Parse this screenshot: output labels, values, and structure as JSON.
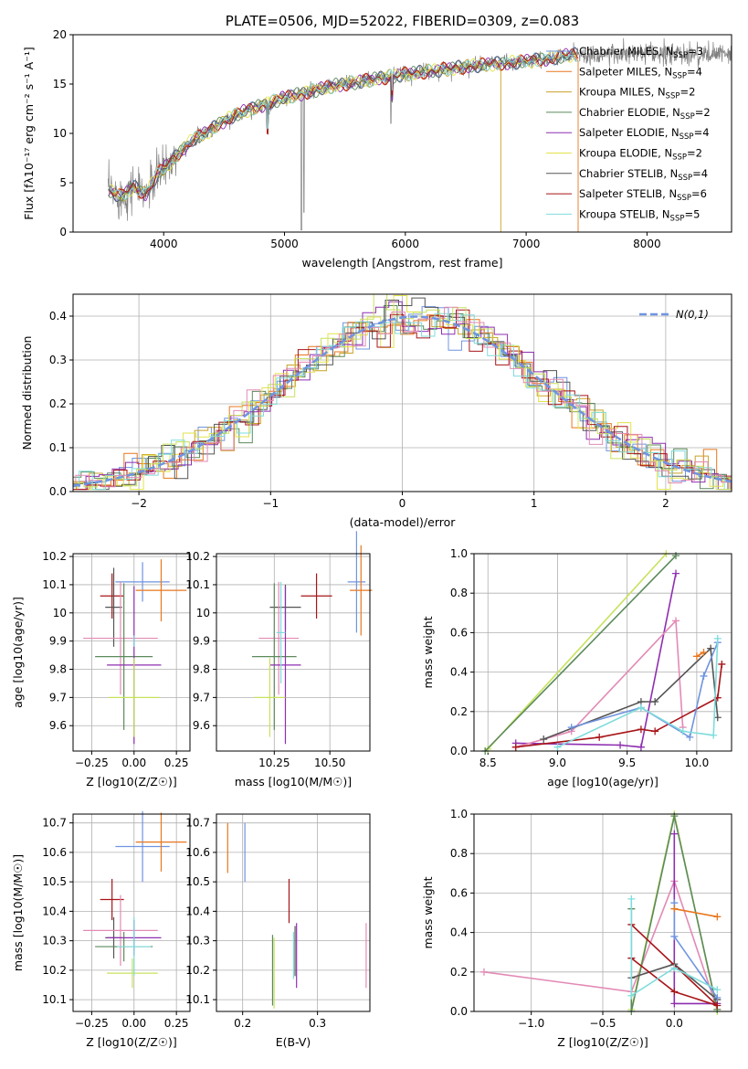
{
  "palette": [
    "#6f94e0",
    "#e8771e",
    "#c9a227",
    "#5b8a5b",
    "#8e2fb0",
    "#e3e34b",
    "#555555",
    "#a81418",
    "#7fdcdc",
    "#e38ab5",
    "#c7e25c",
    "#7b4ea3"
  ],
  "chart_data": [
    {
      "id": "spectrum",
      "type": "line",
      "title": "PLATE=0506, MJD=52022, FIBERID=0309, z=0.083",
      "xlabel": "wavelength [Angstrom, rest frame]",
      "ylabel": "Flux [fλ10⁻¹⁷ erg cm⁻² s⁻¹ A⁻¹]",
      "xlim": [
        3250,
        8700
      ],
      "ylim": [
        0,
        20
      ],
      "xticks": [
        4000,
        5000,
        6000,
        7000,
        8000
      ],
      "yticks": [
        0,
        5,
        10,
        15,
        20
      ],
      "grid": false,
      "legend_position": "upper right",
      "continuum": {
        "x": [
          3550,
          3650,
          3750,
          3850,
          3950,
          4050,
          4150,
          4250,
          4350,
          4450,
          4600,
          4800,
          5000,
          5200,
          5400,
          5600,
          5800,
          6000,
          6200,
          6400,
          6600,
          6800,
          7000,
          7200,
          7400
        ],
        "y": [
          4.2,
          3.6,
          4.6,
          3.8,
          5.9,
          7.0,
          8.3,
          9.5,
          10.0,
          10.9,
          11.9,
          12.8,
          13.6,
          14.2,
          14.8,
          15.2,
          15.6,
          16.0,
          16.3,
          16.6,
          16.9,
          17.1,
          17.3,
          17.6,
          18.0
        ]
      },
      "series": [
        {
          "name": "Chabrier MILES, N_SSP=3",
          "color": "#6f94e0"
        },
        {
          "name": "Salpeter MILES, N_SSP=4",
          "color": "#e8771e"
        },
        {
          "name": "Kroupa MILES, N_SSP=2",
          "color": "#c9a227"
        },
        {
          "name": "Chabrier ELODIE, N_SSP=2",
          "color": "#5b8a5b"
        },
        {
          "name": "Salpeter ELODIE, N_SSP=4",
          "color": "#8e2fb0"
        },
        {
          "name": "Kroupa ELODIE, N_SSP=2",
          "color": "#e3e34b"
        },
        {
          "name": "Chabrier STELIB, N_SSP=4",
          "color": "#555555"
        },
        {
          "name": "Salpeter STELIB, N_SSP=6",
          "color": "#a81418"
        },
        {
          "name": "Kroupa STELIB, N_SSP=5",
          "color": "#7fdcdc"
        }
      ],
      "legend_labels": [
        {
          "pre": "Chabrier MILES, N",
          "sub": "SSP",
          "post": "=3",
          "color": "#6f94e0"
        },
        {
          "pre": "Salpeter MILES, N",
          "sub": "SSP",
          "post": "=4",
          "color": "#e8771e"
        },
        {
          "pre": "Kroupa MILES, N",
          "sub": "SSP",
          "post": "=2",
          "color": "#c9a227"
        },
        {
          "pre": "Chabrier ELODIE, N",
          "sub": "SSP",
          "post": "=2",
          "color": "#5b8a5b"
        },
        {
          "pre": "Salpeter ELODIE, N",
          "sub": "SSP",
          "post": "=4",
          "color": "#8e2fb0"
        },
        {
          "pre": "Kroupa ELODIE, N",
          "sub": "SSP",
          "post": "=2",
          "color": "#e3e34b"
        },
        {
          "pre": "Chabrier STELIB, N",
          "sub": "SSP",
          "post": "=4",
          "color": "#555555"
        },
        {
          "pre": "Salpeter STELIB, N",
          "sub": "SSP",
          "post": "=6",
          "color": "#a81418"
        },
        {
          "pre": "Kroupa STELIB, N",
          "sub": "SSP",
          "post": "=5",
          "color": "#7fdcdc"
        }
      ]
    },
    {
      "id": "residuals",
      "type": "histogram",
      "xlabel": "(data-model)/error",
      "ylabel": "Normed distribution",
      "xlim": [
        -2.5,
        2.5
      ],
      "ylim": [
        0,
        0.45
      ],
      "xticks": [
        -2,
        -1,
        0,
        1,
        2
      ],
      "yticks": [
        0.0,
        0.1,
        0.2,
        0.3,
        0.4
      ],
      "grid": true,
      "reference_curve": {
        "name": "N(0,1)",
        "color": "#6f94e0",
        "mu": 0.1,
        "sigma": 1.0
      },
      "legend_position": "upper right",
      "bin_width": 0.1,
      "series_colors": [
        "#6f94e0",
        "#e8771e",
        "#c9a227",
        "#5b8a5b",
        "#8e2fb0",
        "#e3e34b",
        "#555555",
        "#a81418",
        "#7fdcdc",
        "#c7e25c",
        "#e38ab5"
      ]
    },
    {
      "id": "age_vs_Z",
      "type": "errorbar",
      "xlabel": "Z [log10(Z/Z☉)]",
      "ylabel": "age  [log10(age/yr)]",
      "xlim": [
        -0.36,
        0.33
      ],
      "ylim": [
        9.51,
        10.21
      ],
      "xticks": [
        -0.25,
        0.0,
        0.25
      ],
      "xticklabels": [
        "−0.25",
        "0.00",
        "0.25"
      ],
      "yticks": [
        9.6,
        9.7,
        9.8,
        9.9,
        10.0,
        10.1,
        10.2
      ],
      "grid": true,
      "points": [
        {
          "x": 0.05,
          "y": 10.11,
          "xerr": 0.16,
          "yerr": 0.07,
          "color": "#6f94e0"
        },
        {
          "x": 0.16,
          "y": 10.08,
          "xerr": 0.15,
          "yerr": 0.11,
          "color": "#e8771e"
        },
        {
          "x": -0.13,
          "y": 10.06,
          "xerr": 0.07,
          "yerr": 0.08,
          "color": "#a81418"
        },
        {
          "x": -0.12,
          "y": 10.02,
          "xerr": 0.05,
          "yerr": 0.14,
          "color": "#555555"
        },
        {
          "x": -0.08,
          "y": 9.91,
          "xerr": 0.22,
          "yerr": 0.2,
          "color": "#e38ab5"
        },
        {
          "x": -0.06,
          "y": 9.845,
          "xerr": 0.17,
          "yerr": 0.26,
          "color": "#5b8a5b"
        },
        {
          "x": 0.0,
          "y": 9.815,
          "xerr": 0.16,
          "yerr": 0.28,
          "color": "#8e2fb0"
        },
        {
          "x": 0.0,
          "y": 9.7,
          "xerr": 0.15,
          "yerr": 0.14,
          "color": "#c7e25c"
        },
        {
          "x": 0.0,
          "y": 9.9,
          "xerr": 0.0,
          "yerr": 0.02,
          "color": "#7fdcdc"
        }
      ]
    },
    {
      "id": "age_vs_mass",
      "type": "errorbar",
      "xlabel": "mass [log10(M/M☉)]",
      "ylabel": "",
      "xlim": [
        9.99,
        10.68
      ],
      "ylim": [
        9.51,
        10.21
      ],
      "xticks": [
        10.25,
        10.5
      ],
      "xticklabels": [
        "10.25",
        "10.50"
      ],
      "yticks": [
        9.6,
        9.7,
        9.8,
        9.9,
        10.0,
        10.1,
        10.2
      ],
      "grid": true,
      "points": [
        {
          "x": 10.62,
          "y": 10.11,
          "xerr": 0.04,
          "yerr": 0.18,
          "color": "#6f94e0"
        },
        {
          "x": 10.64,
          "y": 10.08,
          "xerr": 0.05,
          "yerr": 0.16,
          "color": "#e8771e"
        },
        {
          "x": 10.44,
          "y": 10.06,
          "xerr": 0.07,
          "yerr": 0.08,
          "color": "#a81418"
        },
        {
          "x": 10.3,
          "y": 10.02,
          "xerr": 0.07,
          "yerr": 0.08,
          "color": "#555555"
        },
        {
          "x": 10.27,
          "y": 9.91,
          "xerr": 0.09,
          "yerr": 0.2,
          "color": "#e38ab5"
        },
        {
          "x": 10.25,
          "y": 9.845,
          "xerr": 0.1,
          "yerr": 0.26,
          "color": "#5b8a5b"
        },
        {
          "x": 10.3,
          "y": 9.815,
          "xerr": 0.07,
          "yerr": 0.28,
          "color": "#8e2fb0"
        },
        {
          "x": 10.23,
          "y": 9.7,
          "xerr": 0.07,
          "yerr": 0.14,
          "color": "#c7e25c"
        },
        {
          "x": 10.28,
          "y": 9.93,
          "xerr": 0.02,
          "yerr": 0.18,
          "color": "#7fdcdc"
        }
      ]
    },
    {
      "id": "weight_vs_age",
      "type": "line",
      "xlabel": "age  [log10(age/yr)]",
      "ylabel": "mass weight",
      "xlim": [
        8.4,
        10.25
      ],
      "ylim": [
        0,
        1.0
      ],
      "xticks": [
        8.5,
        9.0,
        9.5,
        10.0
      ],
      "xticklabels": [
        "8.5",
        "9.0",
        "9.5",
        "10.0"
      ],
      "yticks": [
        0,
        0.2,
        0.4,
        0.6,
        0.8,
        1.0
      ],
      "yticklabels": [
        "0.0",
        "0.2",
        "0.4",
        "0.6",
        "0.8",
        "1.0"
      ],
      "grid": true,
      "series": [
        {
          "color": "#c7e25c",
          "points": [
            [
              8.5,
              0.01
            ],
            [
              9.78,
              1.0
            ]
          ]
        },
        {
          "color": "#5b8a5b",
          "points": [
            [
              8.48,
              0.0
            ],
            [
              9.85,
              0.99
            ]
          ]
        },
        {
          "color": "#8e2fb0",
          "points": [
            [
              8.7,
              0.04
            ],
            [
              9.45,
              0.03
            ],
            [
              9.6,
              0.02
            ],
            [
              9.85,
              0.9
            ]
          ]
        },
        {
          "color": "#e38ab5",
          "points": [
            [
              8.7,
              0.02
            ],
            [
              9.1,
              0.1
            ],
            [
              9.85,
              0.66
            ],
            [
              9.9,
              0.12
            ]
          ]
        },
        {
          "color": "#555555",
          "points": [
            [
              8.9,
              0.06
            ],
            [
              9.6,
              0.25
            ],
            [
              9.7,
              0.25
            ],
            [
              10.1,
              0.52
            ],
            [
              10.15,
              0.17
            ]
          ]
        },
        {
          "color": "#a81418",
          "points": [
            [
              8.7,
              0.02
            ],
            [
              9.3,
              0.07
            ],
            [
              9.6,
              0.11
            ],
            [
              9.7,
              0.1
            ],
            [
              10.15,
              0.27
            ],
            [
              10.18,
              0.44
            ]
          ]
        },
        {
          "color": "#6f94e0",
          "points": [
            [
              9.1,
              0.12
            ],
            [
              9.6,
              0.22
            ],
            [
              9.95,
              0.07
            ],
            [
              10.05,
              0.38
            ],
            [
              10.15,
              0.55
            ]
          ]
        },
        {
          "color": "#7fdcdc",
          "points": [
            [
              9.0,
              0.02
            ],
            [
              9.6,
              0.22
            ],
            [
              9.9,
              0.1
            ],
            [
              10.12,
              0.08
            ],
            [
              10.15,
              0.57
            ]
          ]
        },
        {
          "color": "#e8771e",
          "points": [
            [
              10.0,
              0.48
            ],
            [
              10.05,
              0.5
            ]
          ]
        }
      ]
    },
    {
      "id": "mass_vs_Z",
      "type": "errorbar",
      "xlabel": "Z [log10(Z/Z☉)]",
      "ylabel": "mass [log10(M/M☉)]",
      "xlim": [
        -0.36,
        0.33
      ],
      "ylim": [
        10.06,
        10.73
      ],
      "xticks": [
        -0.25,
        0.0,
        0.25
      ],
      "xticklabels": [
        "−0.25",
        "0.00",
        "0.25"
      ],
      "yticks": [
        10.1,
        10.2,
        10.3,
        10.4,
        10.5,
        10.6,
        10.7
      ],
      "grid": true,
      "points": [
        {
          "x": 0.05,
          "y": 10.62,
          "xerr": 0.16,
          "yerr": 0.12,
          "color": "#6f94e0"
        },
        {
          "x": 0.16,
          "y": 10.635,
          "xerr": 0.15,
          "yerr": 0.1,
          "color": "#e8771e"
        },
        {
          "x": -0.13,
          "y": 10.44,
          "xerr": 0.07,
          "yerr": 0.07,
          "color": "#a81418"
        },
        {
          "x": -0.12,
          "y": 10.31,
          "xerr": 0.05,
          "yerr": 0.07,
          "color": "#555555"
        },
        {
          "x": -0.08,
          "y": 10.335,
          "xerr": 0.22,
          "yerr": 0.12,
          "color": "#e38ab5"
        },
        {
          "x": -0.06,
          "y": 10.28,
          "xerr": 0.17,
          "yerr": 0.05,
          "color": "#5b8a5b"
        },
        {
          "x": 0.0,
          "y": 10.31,
          "xerr": 0.16,
          "yerr": 0.06,
          "color": "#8e2fb0"
        },
        {
          "x": -0.01,
          "y": 10.19,
          "xerr": 0.15,
          "yerr": 0.05,
          "color": "#c7e25c"
        },
        {
          "x": 0.0,
          "y": 10.28,
          "xerr": 0.1,
          "yerr": 0.1,
          "color": "#7fdcdc"
        }
      ]
    },
    {
      "id": "mass_vs_ebv",
      "type": "errorbar",
      "xlabel": "E(B-V)",
      "ylabel": "",
      "xlim": [
        0.165,
        0.37
      ],
      "ylim": [
        10.06,
        10.73
      ],
      "xticks": [
        0.2,
        0.3
      ],
      "xticklabels": [
        "0.2",
        "0.3"
      ],
      "yticks": [
        10.1,
        10.2,
        10.3,
        10.4,
        10.5,
        10.6,
        10.7
      ],
      "grid": true,
      "points": [
        {
          "x": 0.203,
          "y": 10.6,
          "xerr": 0,
          "yerr": 0.1,
          "color": "#6f94e0"
        },
        {
          "x": 0.18,
          "y": 10.615,
          "xerr": 0,
          "yerr": 0.085,
          "color": "#e8771e"
        },
        {
          "x": 0.262,
          "y": 10.435,
          "xerr": 0,
          "yerr": 0.075,
          "color": "#a81418"
        },
        {
          "x": 0.27,
          "y": 10.265,
          "xerr": 0,
          "yerr": 0.085,
          "color": "#555555"
        },
        {
          "x": 0.365,
          "y": 10.25,
          "xerr": 0,
          "yerr": 0.11,
          "color": "#e38ab5"
        },
        {
          "x": 0.24,
          "y": 10.2,
          "xerr": 0,
          "yerr": 0.12,
          "color": "#5b8a5b"
        },
        {
          "x": 0.272,
          "y": 10.25,
          "xerr": 0,
          "yerr": 0.11,
          "color": "#8e2fb0"
        },
        {
          "x": 0.242,
          "y": 10.19,
          "xerr": 0,
          "yerr": 0.12,
          "color": "#c7e25c"
        },
        {
          "x": 0.268,
          "y": 10.25,
          "xerr": 0,
          "yerr": 0.08,
          "color": "#7fdcdc"
        }
      ]
    },
    {
      "id": "weight_vs_Z",
      "type": "line",
      "xlabel": "Z [log10(Z/Z☉)]",
      "ylabel": "mass weight",
      "xlim": [
        -1.4,
        0.4
      ],
      "ylim": [
        0,
        1.0
      ],
      "xticks": [
        -1.0,
        -0.5,
        0.0
      ],
      "xticklabels": [
        "−1.0",
        "−0.5",
        "0.0"
      ],
      "yticks": [
        0,
        0.2,
        0.4,
        0.6,
        0.8,
        1.0
      ],
      "yticklabels": [
        "0.0",
        "0.2",
        "0.4",
        "0.6",
        "0.8",
        "1.0"
      ],
      "grid": true,
      "series": [
        {
          "color": "#e38ab5",
          "points": [
            [
              -1.33,
              0.2
            ],
            [
              -0.3,
              0.1
            ],
            [
              0.0,
              0.66
            ],
            [
              0.3,
              0.01
            ]
          ]
        },
        {
          "color": "#c7e25c",
          "points": [
            [
              -0.3,
              0.01
            ],
            [
              0.0,
              1.0
            ],
            [
              0.3,
              0.0
            ]
          ]
        },
        {
          "color": "#5b8a5b",
          "points": [
            [
              -0.3,
              0.52
            ],
            [
              -0.3,
              0.0
            ],
            [
              0.0,
              0.99
            ],
            [
              0.3,
              0.01
            ]
          ]
        },
        {
          "color": "#8e2fb0",
          "points": [
            [
              0.0,
              0.9
            ],
            [
              0.0,
              0.04
            ],
            [
              0.3,
              0.04
            ]
          ]
        },
        {
          "color": "#555555",
          "points": [
            [
              -0.3,
              0.17
            ],
            [
              0.0,
              0.24
            ],
            [
              0.3,
              0.06
            ]
          ]
        },
        {
          "color": "#a81418",
          "points": [
            [
              -0.3,
              0.27
            ],
            [
              0.0,
              0.1
            ],
            [
              0.3,
              0.03
            ],
            [
              -0.3,
              0.44
            ]
          ]
        },
        {
          "color": "#6f94e0",
          "points": [
            [
              0.0,
              0.55
            ],
            [
              0.0,
              0.38
            ],
            [
              0.3,
              0.07
            ]
          ]
        },
        {
          "color": "#7fdcdc",
          "points": [
            [
              -0.3,
              0.57
            ],
            [
              -0.3,
              0.08
            ],
            [
              0.0,
              0.22
            ],
            [
              0.3,
              0.11
            ]
          ]
        },
        {
          "color": "#e8771e",
          "points": [
            [
              0.0,
              0.52
            ],
            [
              0.3,
              0.48
            ]
          ]
        }
      ]
    }
  ]
}
